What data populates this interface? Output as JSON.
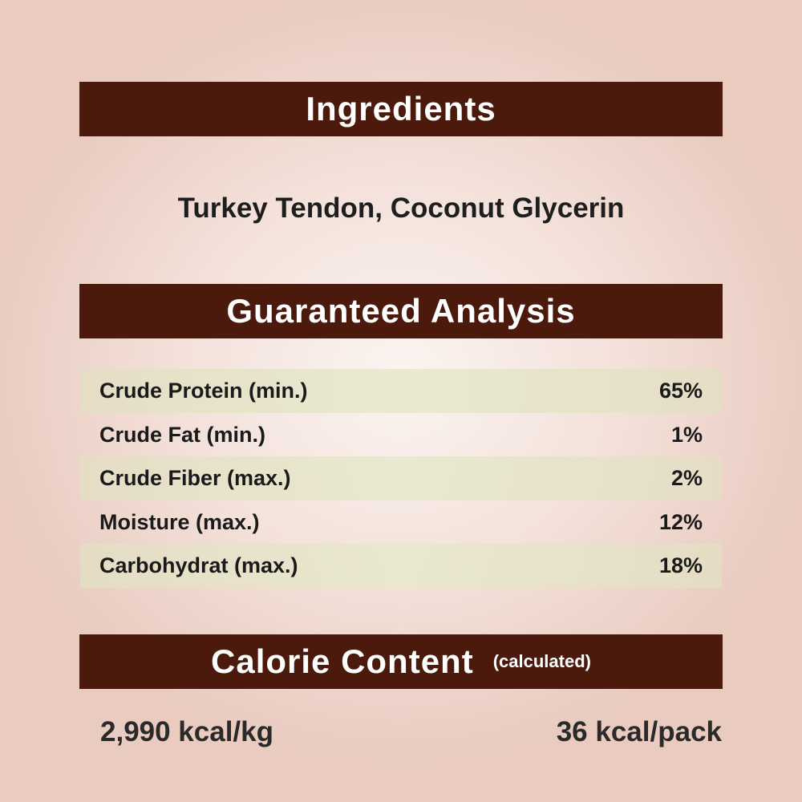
{
  "ingredients": {
    "title": "Ingredients",
    "text": "Turkey Tendon, Coconut Glycerin"
  },
  "analysis": {
    "title": "Guaranteed Analysis",
    "rows": [
      {
        "label": "Crude Protein (min.)",
        "value": "65%"
      },
      {
        "label": "Crude Fat (min.)",
        "value": "1%"
      },
      {
        "label": "Crude Fiber (max.)",
        "value": "2%"
      },
      {
        "label": "Moisture (max.)",
        "value": "12%"
      },
      {
        "label": "Carbohydrat (max.)",
        "value": "18%"
      }
    ]
  },
  "calorie": {
    "title": "Calorie Content",
    "note": "(calculated)",
    "per_kg": "2,990 kcal/kg",
    "per_pack": "36 kcal/pack"
  },
  "colors": {
    "banner": "#4b1a0d",
    "stripe": "#e6e2c8"
  }
}
